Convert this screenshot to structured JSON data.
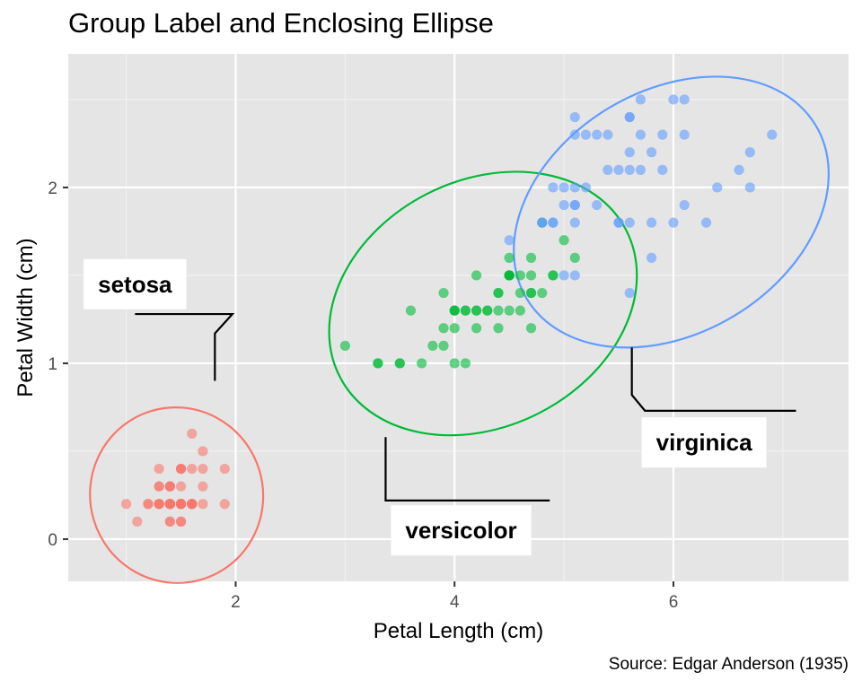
{
  "chart_data": {
    "type": "scatter",
    "title": "Group Label and Enclosing Ellipse",
    "caption": "Source: Edgar Anderson (1935)",
    "xlabel": "Petal Length (cm)",
    "ylabel": "Petal Width (cm)",
    "xlim": [
      0.47,
      7.6
    ],
    "ylim": [
      -0.24,
      2.76
    ],
    "x_ticks": [
      2,
      4,
      6
    ],
    "y_ticks": [
      0,
      1,
      2
    ],
    "grid": true,
    "legend": "none",
    "background": "#e5e5e5",
    "series": [
      {
        "name": "setosa",
        "color": "#f8766d",
        "label_pos": [
          1.08,
          1.45
        ],
        "leader": [
          [
            1.08,
            1.28
          ],
          [
            1.97,
            1.28
          ],
          [
            1.81,
            1.17
          ],
          [
            1.81,
            0.9
          ]
        ],
        "ellipse": {
          "cx": 1.46,
          "cy": 0.25,
          "rx": 0.79,
          "ry": 0.5,
          "angle": -17
        },
        "points": [
          [
            1.4,
            0.2
          ],
          [
            1.4,
            0.2
          ],
          [
            1.3,
            0.2
          ],
          [
            1.5,
            0.2
          ],
          [
            1.4,
            0.2
          ],
          [
            1.7,
            0.4
          ],
          [
            1.4,
            0.3
          ],
          [
            1.5,
            0.2
          ],
          [
            1.4,
            0.2
          ],
          [
            1.5,
            0.1
          ],
          [
            1.5,
            0.2
          ],
          [
            1.6,
            0.2
          ],
          [
            1.4,
            0.1
          ],
          [
            1.1,
            0.1
          ],
          [
            1.2,
            0.2
          ],
          [
            1.5,
            0.4
          ],
          [
            1.3,
            0.4
          ],
          [
            1.4,
            0.3
          ],
          [
            1.7,
            0.3
          ],
          [
            1.5,
            0.3
          ],
          [
            1.7,
            0.2
          ],
          [
            1.5,
            0.4
          ],
          [
            1.0,
            0.2
          ],
          [
            1.7,
            0.5
          ],
          [
            1.9,
            0.2
          ],
          [
            1.6,
            0.2
          ],
          [
            1.6,
            0.4
          ],
          [
            1.5,
            0.2
          ],
          [
            1.4,
            0.2
          ],
          [
            1.6,
            0.2
          ],
          [
            1.6,
            0.2
          ],
          [
            1.5,
            0.4
          ],
          [
            1.5,
            0.1
          ],
          [
            1.4,
            0.2
          ],
          [
            1.5,
            0.2
          ],
          [
            1.2,
            0.2
          ],
          [
            1.3,
            0.2
          ],
          [
            1.4,
            0.1
          ],
          [
            1.3,
            0.2
          ],
          [
            1.5,
            0.2
          ],
          [
            1.3,
            0.3
          ],
          [
            1.3,
            0.3
          ],
          [
            1.3,
            0.2
          ],
          [
            1.6,
            0.6
          ],
          [
            1.9,
            0.4
          ],
          [
            1.4,
            0.3
          ],
          [
            1.6,
            0.2
          ],
          [
            1.4,
            0.2
          ],
          [
            1.5,
            0.2
          ],
          [
            1.4,
            0.2
          ]
        ]
      },
      {
        "name": "versicolor",
        "color": "#00ba38",
        "label_pos": [
          4.06,
          0.05
        ],
        "leader": [
          [
            3.37,
            0.58
          ],
          [
            3.37,
            0.22
          ],
          [
            4.87,
            0.22
          ]
        ],
        "ellipse": {
          "cx": 4.26,
          "cy": 1.34,
          "rx": 1.47,
          "ry": 0.7,
          "angle": -27
        },
        "points": [
          [
            4.7,
            1.4
          ],
          [
            4.5,
            1.5
          ],
          [
            4.9,
            1.5
          ],
          [
            4.0,
            1.3
          ],
          [
            4.6,
            1.5
          ],
          [
            4.5,
            1.3
          ],
          [
            4.7,
            1.6
          ],
          [
            3.3,
            1.0
          ],
          [
            4.6,
            1.3
          ],
          [
            3.9,
            1.4
          ],
          [
            3.5,
            1.0
          ],
          [
            4.2,
            1.5
          ],
          [
            4.0,
            1.0
          ],
          [
            4.7,
            1.4
          ],
          [
            3.6,
            1.3
          ],
          [
            4.4,
            1.4
          ],
          [
            4.5,
            1.5
          ],
          [
            4.1,
            1.0
          ],
          [
            4.5,
            1.5
          ],
          [
            3.9,
            1.1
          ],
          [
            4.8,
            1.8
          ],
          [
            4.0,
            1.3
          ],
          [
            4.9,
            1.5
          ],
          [
            4.7,
            1.2
          ],
          [
            4.3,
            1.3
          ],
          [
            4.4,
            1.4
          ],
          [
            4.8,
            1.4
          ],
          [
            5.0,
            1.7
          ],
          [
            4.5,
            1.5
          ],
          [
            3.5,
            1.0
          ],
          [
            3.8,
            1.1
          ],
          [
            3.7,
            1.0
          ],
          [
            3.9,
            1.2
          ],
          [
            5.1,
            1.6
          ],
          [
            4.5,
            1.5
          ],
          [
            4.5,
            1.6
          ],
          [
            4.7,
            1.5
          ],
          [
            4.4,
            1.3
          ],
          [
            4.1,
            1.3
          ],
          [
            4.0,
            1.3
          ],
          [
            4.4,
            1.2
          ],
          [
            4.6,
            1.4
          ],
          [
            4.0,
            1.2
          ],
          [
            3.3,
            1.0
          ],
          [
            4.2,
            1.3
          ],
          [
            4.2,
            1.2
          ],
          [
            4.2,
            1.3
          ],
          [
            4.3,
            1.3
          ],
          [
            3.0,
            1.1
          ],
          [
            4.1,
            1.3
          ]
        ]
      },
      {
        "name": "virginica",
        "color": "#619cff",
        "label_pos": [
          6.28,
          0.55
        ],
        "leader": [
          [
            5.62,
            1.09
          ],
          [
            5.62,
            0.82
          ],
          [
            5.74,
            0.73
          ],
          [
            7.12,
            0.73
          ]
        ],
        "ellipse": {
          "cx": 5.98,
          "cy": 1.86,
          "rx": 1.54,
          "ry": 0.69,
          "angle": -31
        },
        "points": [
          [
            6.0,
            2.5
          ],
          [
            5.1,
            1.9
          ],
          [
            5.9,
            2.1
          ],
          [
            5.6,
            1.8
          ],
          [
            5.8,
            2.2
          ],
          [
            6.6,
            2.1
          ],
          [
            4.5,
            1.7
          ],
          [
            6.3,
            1.8
          ],
          [
            5.8,
            1.8
          ],
          [
            6.1,
            2.5
          ],
          [
            5.1,
            2.0
          ],
          [
            5.3,
            1.9
          ],
          [
            5.5,
            2.1
          ],
          [
            5.0,
            2.0
          ],
          [
            5.1,
            2.4
          ],
          [
            5.3,
            2.3
          ],
          [
            5.5,
            1.8
          ],
          [
            6.7,
            2.2
          ],
          [
            6.9,
            2.3
          ],
          [
            5.0,
            1.5
          ],
          [
            5.7,
            2.3
          ],
          [
            4.9,
            2.0
          ],
          [
            6.7,
            2.0
          ],
          [
            4.9,
            1.8
          ],
          [
            5.7,
            2.1
          ],
          [
            6.0,
            1.8
          ],
          [
            4.8,
            1.8
          ],
          [
            4.9,
            1.8
          ],
          [
            5.6,
            2.1
          ],
          [
            5.8,
            1.6
          ],
          [
            6.1,
            1.9
          ],
          [
            6.4,
            2.0
          ],
          [
            5.6,
            2.2
          ],
          [
            5.1,
            1.5
          ],
          [
            5.6,
            1.4
          ],
          [
            6.1,
            2.3
          ],
          [
            5.6,
            2.4
          ],
          [
            5.5,
            1.8
          ],
          [
            4.8,
            1.8
          ],
          [
            5.4,
            2.1
          ],
          [
            5.6,
            2.4
          ],
          [
            5.1,
            2.3
          ],
          [
            5.1,
            1.9
          ],
          [
            5.9,
            2.3
          ],
          [
            5.7,
            2.5
          ],
          [
            5.2,
            2.3
          ],
          [
            5.0,
            1.9
          ],
          [
            5.2,
            2.0
          ],
          [
            5.4,
            2.3
          ],
          [
            5.1,
            1.8
          ]
        ]
      }
    ]
  }
}
